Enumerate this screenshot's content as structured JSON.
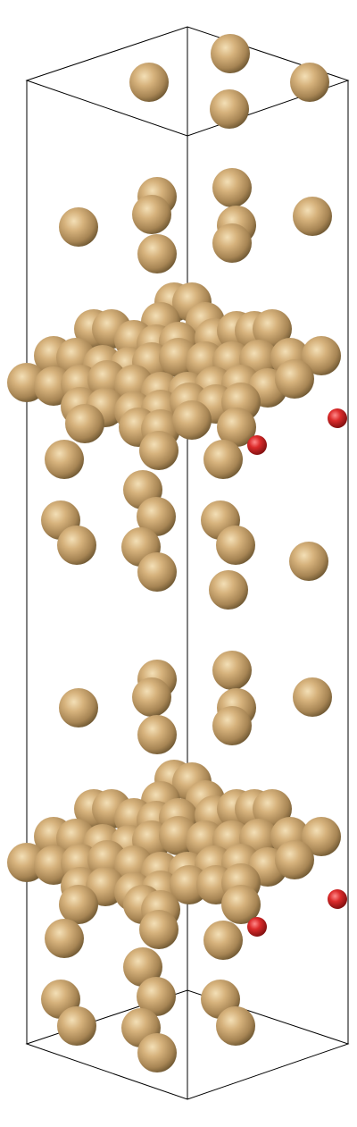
{
  "scene": {
    "kind": "atomic-structure-render",
    "background_color": "#ffffff",
    "cell_line_color": "#000000",
    "atom_types": [
      {
        "name": "gold-atom",
        "color": "#c8a56e",
        "shade": "#6b5530",
        "count_visible": "many"
      },
      {
        "name": "oxygen-atom",
        "color": "#d42a2a",
        "shade": "#7a0e0e",
        "count_visible": 4
      }
    ]
  }
}
